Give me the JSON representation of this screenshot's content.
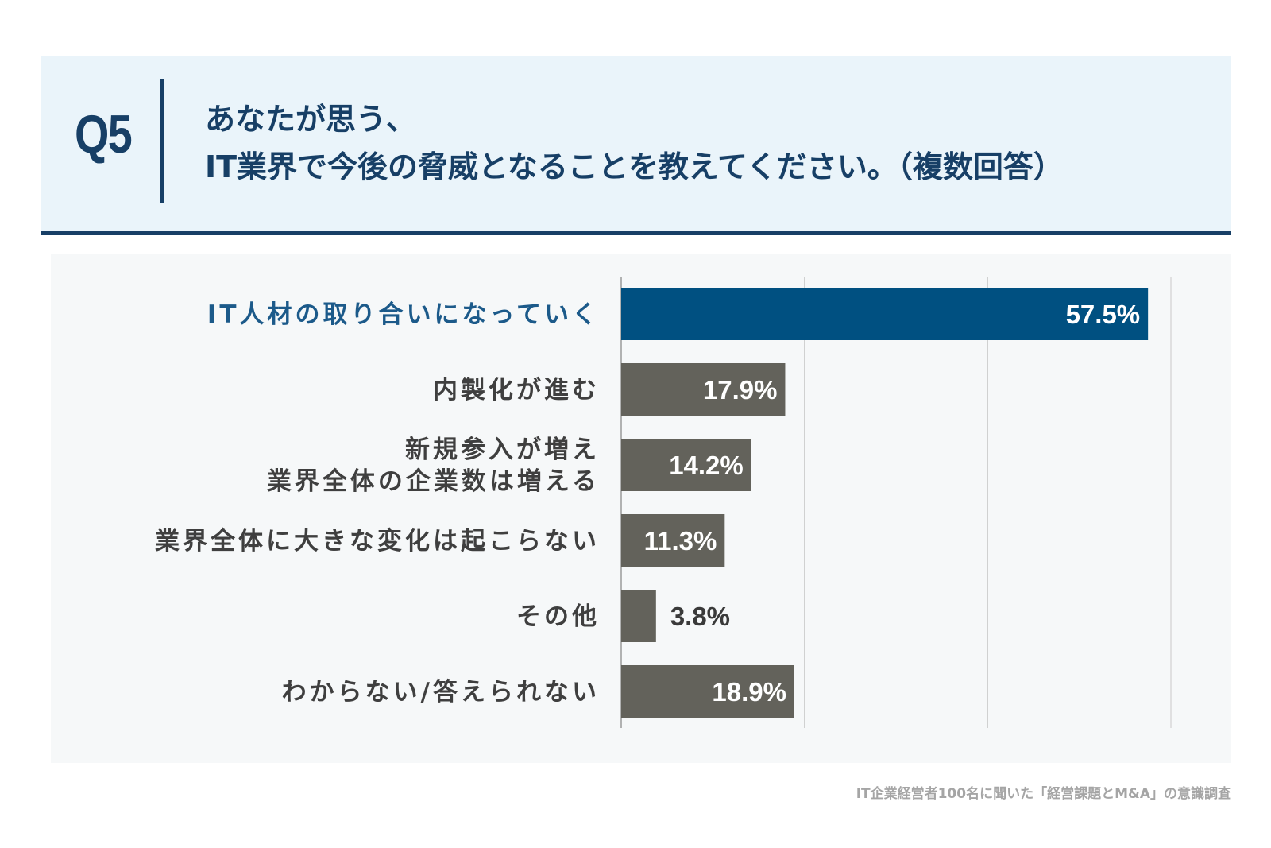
{
  "header": {
    "qnum": "Q5",
    "question_line1": "あなたが思う、",
    "question_line2": "IT業界で今後の脅威となることを教えてください。（複数回答）"
  },
  "colors": {
    "highlight": "#005081",
    "bar": "#63625b",
    "highlight_text": "#1c5a8a",
    "label_text": "#3f3f3f",
    "grid": "#c9c9c9"
  },
  "chart_data": {
    "type": "bar",
    "orientation": "horizontal",
    "title": "あなたが思う、IT業界で今後の脅威となることを教えてください。（複数回答）",
    "categories": [
      [
        "IT人材の取り合いになっていく"
      ],
      [
        "内製化が進む"
      ],
      [
        "新規参入が増え",
        "業界全体の企業数は増える"
      ],
      [
        "業界全体に大きな変化は起こらない"
      ],
      [
        "その他"
      ],
      [
        "わからない/答えられない"
      ]
    ],
    "values": [
      57.5,
      17.9,
      14.2,
      11.3,
      3.8,
      18.9
    ],
    "value_labels": [
      "57.5%",
      "17.9%",
      "14.2%",
      "11.3%",
      "3.8%",
      "18.9%"
    ],
    "highlight_index": 0,
    "xlim": [
      0,
      60
    ],
    "gridlines": [
      0,
      20,
      40,
      60
    ],
    "unit": "%"
  },
  "footer": {
    "source": "IT企業経営者100名に聞いた「経営課題とM&A」の意識調査"
  }
}
